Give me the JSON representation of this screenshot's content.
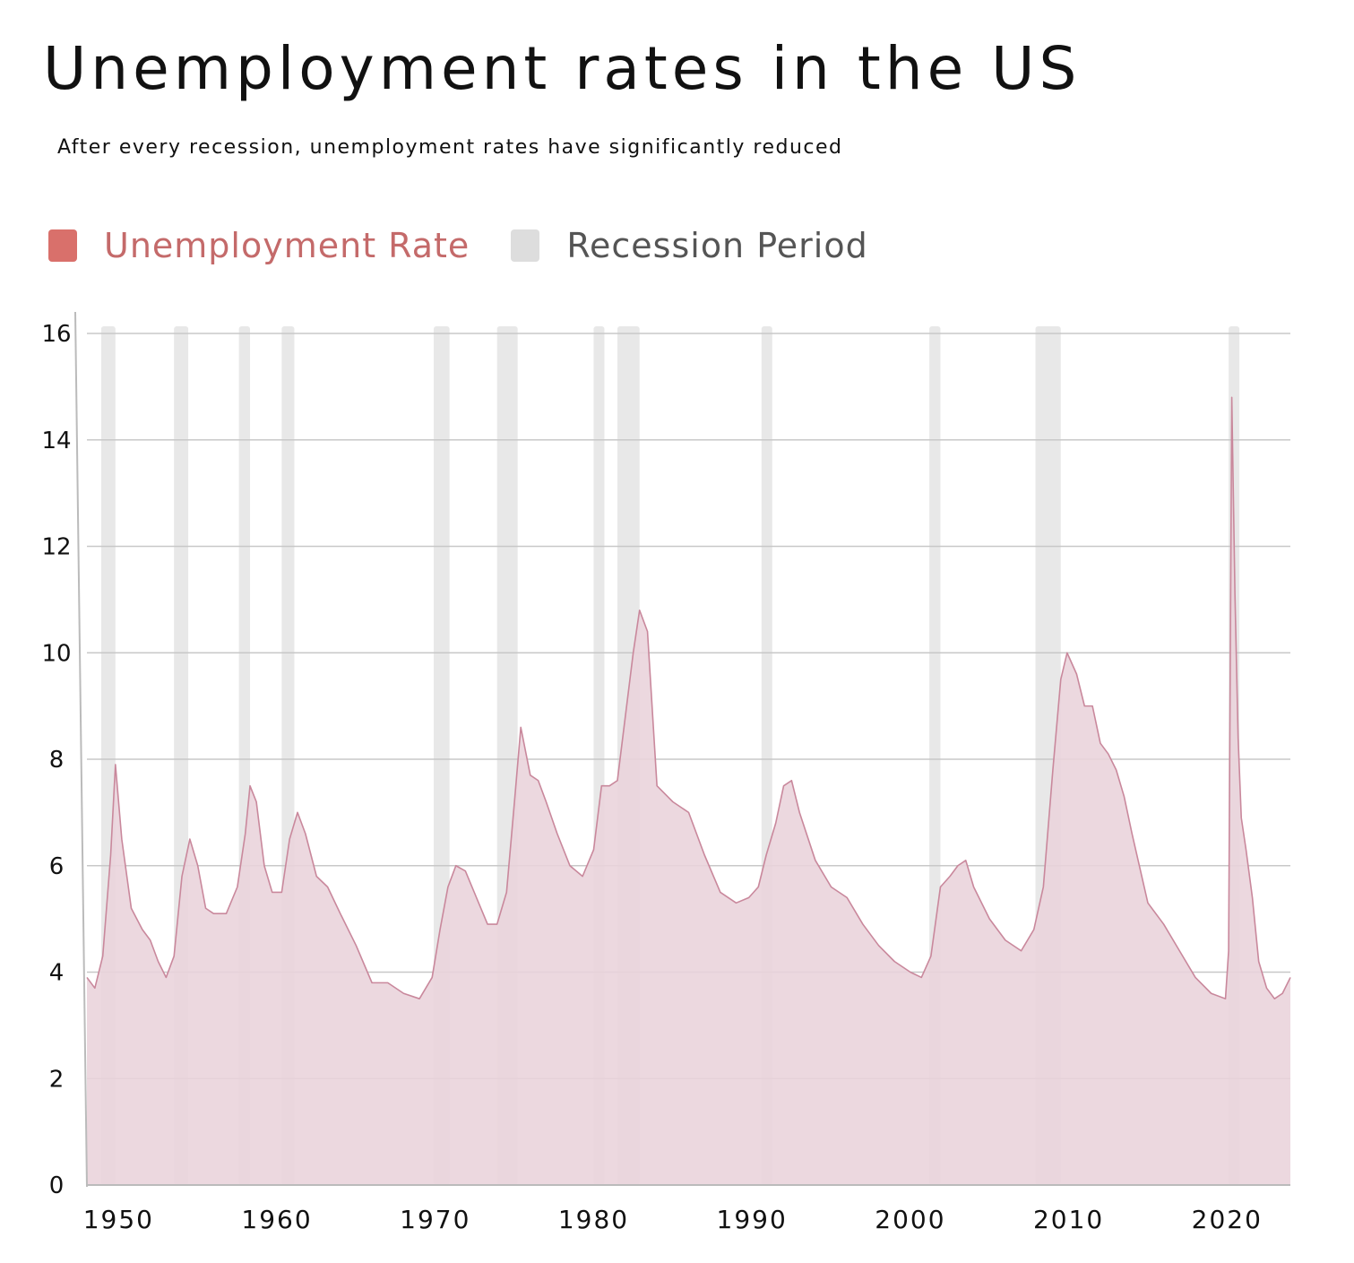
{
  "title": "Unemployment rates in the US",
  "subtitle": "After every recession, unemployment rates have significantly reduced",
  "legend": [
    {
      "label": "Unemployment Rate",
      "color": "#d9706b",
      "text_color": "#c46a6a"
    },
    {
      "label": "Recession Period",
      "color": "#dddddd",
      "text_color": "#555555"
    }
  ],
  "colors": {
    "area_fill": "#e9d3db",
    "area_line": "#c9889c",
    "recession_band": "#e8e8e8",
    "grid": "#c8c8c8"
  },
  "chart_data": {
    "type": "area",
    "title": "Unemployment rates in the US",
    "subtitle": "After every recession, unemployment rates have significantly reduced",
    "xlabel": "",
    "ylabel": "",
    "xlim": [
      1948,
      2024
    ],
    "ylim": [
      0,
      16
    ],
    "yticks": [
      0,
      2,
      4,
      6,
      8,
      10,
      12,
      14,
      16
    ],
    "xticks": [
      1950,
      1960,
      1970,
      1980,
      1990,
      2000,
      2010,
      2020
    ],
    "grid": "horizontal",
    "legend_position": "top-left",
    "series": [
      {
        "name": "Unemployment Rate",
        "x": [
          1948.0,
          1948.5,
          1949.0,
          1949.5,
          1949.8,
          1950.2,
          1950.8,
          1951.5,
          1952.0,
          1952.5,
          1953.0,
          1953.5,
          1954.0,
          1954.5,
          1955.0,
          1955.5,
          1956.0,
          1956.8,
          1957.5,
          1958.0,
          1958.3,
          1958.7,
          1959.2,
          1959.7,
          1960.3,
          1960.8,
          1961.3,
          1961.8,
          1962.5,
          1963.2,
          1964.0,
          1965.0,
          1966.0,
          1967.0,
          1968.0,
          1969.0,
          1969.8,
          1970.3,
          1970.8,
          1971.3,
          1971.9,
          1972.6,
          1973.3,
          1973.9,
          1974.5,
          1975.0,
          1975.4,
          1976.0,
          1976.5,
          1977.0,
          1977.7,
          1978.5,
          1979.3,
          1980.0,
          1980.5,
          1981.0,
          1981.5,
          1982.0,
          1982.5,
          1982.9,
          1983.4,
          1984.0,
          1985.0,
          1986.0,
          1987.0,
          1988.0,
          1989.0,
          1989.8,
          1990.4,
          1990.9,
          1991.5,
          1992.0,
          1992.5,
          1993.0,
          1994.0,
          1995.0,
          1996.0,
          1997.0,
          1998.0,
          1999.0,
          2000.0,
          2000.7,
          2001.3,
          2001.9,
          2002.5,
          2003.0,
          2003.5,
          2004.0,
          2005.0,
          2006.0,
          2007.0,
          2007.8,
          2008.4,
          2009.0,
          2009.5,
          2009.9,
          2010.5,
          2011.0,
          2011.5,
          2012.0,
          2012.5,
          2013.0,
          2013.5,
          2014.0,
          2015.0,
          2016.0,
          2017.0,
          2018.0,
          2019.0,
          2019.9,
          2020.1,
          2020.3,
          2020.5,
          2020.7,
          2020.9,
          2021.2,
          2021.6,
          2022.0,
          2022.5,
          2023.0,
          2023.5,
          2024.0
        ],
        "values": [
          3.9,
          3.7,
          4.3,
          6.2,
          7.9,
          6.5,
          5.2,
          4.8,
          4.6,
          4.2,
          3.9,
          4.3,
          5.8,
          6.5,
          6.0,
          5.2,
          5.1,
          5.1,
          5.6,
          6.6,
          7.5,
          7.2,
          6.0,
          5.5,
          5.5,
          6.5,
          7.0,
          6.6,
          5.8,
          5.6,
          5.1,
          4.5,
          3.8,
          3.8,
          3.6,
          3.5,
          3.9,
          4.8,
          5.6,
          6.0,
          5.9,
          5.4,
          4.9,
          4.9,
          5.5,
          7.2,
          8.6,
          7.7,
          7.6,
          7.2,
          6.6,
          6.0,
          5.8,
          6.3,
          7.5,
          7.5,
          7.6,
          8.8,
          10.0,
          10.8,
          10.4,
          7.5,
          7.2,
          7.0,
          6.2,
          5.5,
          5.3,
          5.4,
          5.6,
          6.2,
          6.8,
          7.5,
          7.6,
          7.0,
          6.1,
          5.6,
          5.4,
          4.9,
          4.5,
          4.2,
          4.0,
          3.9,
          4.3,
          5.6,
          5.8,
          6.0,
          6.1,
          5.6,
          5.0,
          4.6,
          4.4,
          4.8,
          5.6,
          7.8,
          9.5,
          10.0,
          9.6,
          9.0,
          9.0,
          8.3,
          8.1,
          7.8,
          7.3,
          6.6,
          5.3,
          4.9,
          4.4,
          3.9,
          3.6,
          3.5,
          4.4,
          14.8,
          11.1,
          8.4,
          6.9,
          6.3,
          5.4,
          4.2,
          3.7,
          3.5,
          3.6,
          3.9
        ]
      }
    ],
    "recessions": [
      [
        1948.9,
        1949.8
      ],
      [
        1953.5,
        1954.4
      ],
      [
        1957.6,
        1958.3
      ],
      [
        1960.3,
        1961.1
      ],
      [
        1969.9,
        1970.9
      ],
      [
        1973.9,
        1975.2
      ],
      [
        1980.0,
        1980.5
      ],
      [
        1981.5,
        1982.9
      ],
      [
        1990.6,
        1991.2
      ],
      [
        2001.2,
        2001.9
      ],
      [
        2007.9,
        2009.5
      ],
      [
        2020.1,
        2020.4
      ]
    ]
  }
}
